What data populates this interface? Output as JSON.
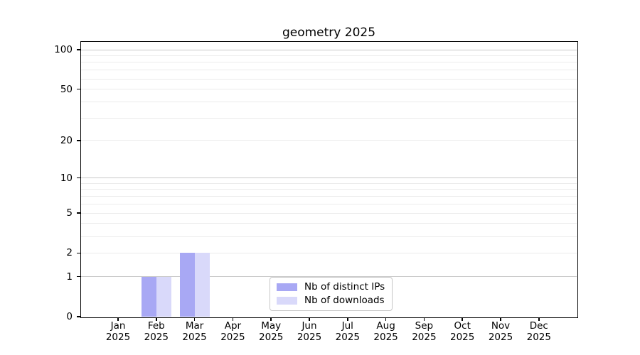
{
  "chart_data": {
    "type": "bar",
    "title": "geometry 2025",
    "categories": [
      "Jan 2025",
      "Feb 2025",
      "Mar 2025",
      "Apr 2025",
      "May 2025",
      "Jun 2025",
      "Jul 2025",
      "Aug 2025",
      "Sep 2025",
      "Oct 2025",
      "Nov 2025",
      "Dec 2025"
    ],
    "series": [
      {
        "name": "Nb of distinct IPs",
        "color": "#a8a8f4",
        "values": [
          0,
          1,
          2,
          0,
          0,
          0,
          0,
          0,
          0,
          0,
          0,
          0
        ]
      },
      {
        "name": "Nb of downloads",
        "color": "#d9d9fa",
        "values": [
          0,
          1,
          2,
          0,
          0,
          0,
          0,
          0,
          0,
          0,
          0,
          0
        ]
      }
    ],
    "xlabel": "",
    "ylabel": "",
    "yscale": "log1p",
    "ylim": [
      0,
      114.6
    ],
    "y_ticks": [
      {
        "value": 0,
        "label": "0"
      },
      {
        "value": 1,
        "label": "1"
      },
      {
        "value": 2,
        "label": "2"
      },
      {
        "value": 5,
        "label": "5"
      },
      {
        "value": 10,
        "label": "10"
      },
      {
        "value": 20,
        "label": "20"
      },
      {
        "value": 50,
        "label": "50"
      },
      {
        "value": 100,
        "label": "100"
      }
    ],
    "grid": {
      "orientation": "horizontal",
      "major_values": [
        1,
        10,
        100
      ],
      "minor_values": [
        2,
        3,
        4,
        5,
        6,
        7,
        8,
        9,
        20,
        30,
        40,
        50,
        60,
        70,
        80,
        90
      ]
    },
    "legend": {
      "position": "lower-center",
      "entries": [
        "Nb of distinct IPs",
        "Nb of downloads"
      ]
    },
    "colors": {
      "major_grid": "#c9c9c9",
      "minor_grid": "#ebebeb",
      "axis": "#000000",
      "legend_border": "#c7c7c7",
      "background": "#ffffff"
    }
  }
}
